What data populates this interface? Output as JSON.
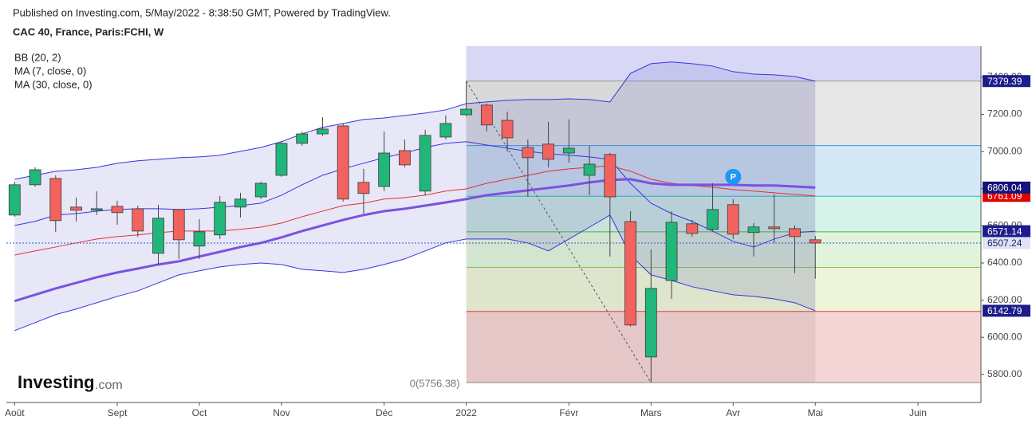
{
  "header": {
    "published": "Published on Investing.com, 5/May/2022 - 8:38:50 GMT, Powered by TradingView.",
    "symbol": "CAC 40, France, Paris:FCHI, W"
  },
  "chart_data": {
    "type": "candlestick",
    "x": [
      0,
      1,
      2,
      3,
      4,
      5,
      6,
      7,
      8,
      9,
      10,
      11,
      12,
      13,
      14,
      15,
      16,
      17,
      18,
      19,
      20,
      21,
      22,
      23,
      24,
      25,
      26,
      27,
      28,
      29,
      30,
      31,
      32,
      33,
      34,
      35,
      36,
      37,
      38,
      39
    ],
    "open": [
      6658,
      6821,
      6855,
      6701,
      6684,
      6705,
      6692,
      6452,
      6688,
      6491,
      6551,
      6701,
      6756,
      6872,
      7044,
      7095,
      7138,
      6834,
      6812,
      7005,
      6787,
      7078,
      7198,
      7250,
      7168,
      7022,
      7040,
      6992,
      6872,
      6984,
      6623,
      5894,
      6306,
      6611,
      6581,
      6714,
      6564,
      6594,
      6585,
      6525
    ],
    "high": [
      6838,
      6915,
      6872,
      6752,
      6786,
      6735,
      6709,
      6714,
      6692,
      6636,
      6761,
      6778,
      6838,
      7057,
      7108,
      7185,
      7151,
      6907,
      7108,
      7065,
      7117,
      7194,
      7379.39,
      7258,
      7215,
      7065,
      7160,
      7173,
      7031,
      6992,
      6679,
      6473,
      6679,
      6632,
      6829,
      6744,
      6615,
      6769,
      6602,
      6546
    ],
    "low": [
      6649,
      6812,
      6568,
      6623,
      6658,
      6606,
      6542,
      6392,
      6422,
      6422,
      6529,
      6645,
      6744,
      6864,
      7031,
      7083,
      6731,
      6666,
      6787,
      6915,
      6765,
      7065,
      7190,
      7108,
      7001,
      6756,
      6915,
      6941,
      6765,
      6435,
      6057,
      5756.38,
      6207,
      6542,
      6572,
      6529,
      6435,
      6508,
      6345,
      6315
    ],
    "close": [
      6821,
      6902,
      6628,
      6684,
      6692,
      6671,
      6572,
      6641,
      6525,
      6568,
      6727,
      6744,
      6829,
      7044,
      7095,
      7121,
      6744,
      6774,
      6992,
      6928,
      7087,
      7151,
      7228,
      7143,
      7074,
      6967,
      6958,
      7018,
      6932,
      6756,
      6066,
      6263,
      6619,
      6559,
      6688,
      6555,
      6594,
      6585,
      6542,
      6507.24
    ],
    "up_color": "#22b77a",
    "down_color": "#f2625f",
    "last_color": "#3a55d0",
    "bands": {
      "name": "BB (20, 2)",
      "color": "#3535e0",
      "fill": "rgba(70,70,190,0.13)",
      "upper": [
        6851,
        6872,
        6894,
        6902,
        6915,
        6937,
        6950,
        6958,
        6967,
        6971,
        6980,
        7001,
        7022,
        7053,
        7095,
        7130,
        7151,
        7173,
        7181,
        7194,
        7207,
        7224,
        7258,
        7267,
        7276,
        7280,
        7280,
        7284,
        7280,
        7267,
        7421,
        7473,
        7482,
        7473,
        7460,
        7430,
        7417,
        7413,
        7404,
        7379.39
      ],
      "middle": [
        6602,
        6624,
        6658,
        6666,
        6679,
        6688,
        6692,
        6692,
        6688,
        6692,
        6701,
        6709,
        6722,
        6765,
        6821,
        6872,
        6907,
        6937,
        6967,
        6992,
        7022,
        7044,
        7053,
        7035,
        7018,
        7001,
        6988,
        6980,
        6971,
        6958,
        6829,
        6722,
        6666,
        6624,
        6572,
        6516,
        6486,
        6529,
        6563,
        6571.14
      ],
      "lower": [
        6036,
        6079,
        6122,
        6152,
        6186,
        6220,
        6250,
        6293,
        6336,
        6358,
        6379,
        6392,
        6400,
        6392,
        6366,
        6358,
        6349,
        6366,
        6392,
        6422,
        6465,
        6508,
        6529,
        6529,
        6529,
        6508,
        6465,
        6529,
        6593,
        6658,
        6443,
        6336,
        6306,
        6272,
        6250,
        6229,
        6220,
        6207,
        6186,
        6142.79
      ]
    },
    "series": [
      {
        "name": "MA (7, close, 0)",
        "color": "#e53030",
        "width": 1,
        "values": [
          6443,
          6465,
          6486,
          6508,
          6529,
          6542,
          6551,
          6563,
          6572,
          6572,
          6572,
          6581,
          6593,
          6615,
          6649,
          6679,
          6709,
          6722,
          6744,
          6752,
          6765,
          6787,
          6799,
          6829,
          6851,
          6872,
          6894,
          6907,
          6915,
          6924,
          6894,
          6851,
          6829,
          6817,
          6808,
          6795,
          6787,
          6778,
          6769,
          6761.09
        ]
      },
      {
        "name": "MA (30, close, 0)",
        "color": "#7a52e0",
        "width": 3,
        "values": [
          6195,
          6229,
          6263,
          6293,
          6323,
          6349,
          6370,
          6392,
          6409,
          6435,
          6460,
          6486,
          6508,
          6538,
          6572,
          6602,
          6632,
          6658,
          6679,
          6692,
          6709,
          6726,
          6744,
          6765,
          6778,
          6791,
          6804,
          6817,
          6834,
          6847,
          6851,
          6829,
          6821,
          6821,
          6821,
          6821,
          6817,
          6817,
          6812,
          6806.04
        ]
      }
    ],
    "tag_colors": [
      "#1c1c8c",
      "#1c1c8c",
      "#1c1c8c",
      "#e00000",
      "#14147a"
    ],
    "fib": {
      "start": 22,
      "end": 31,
      "low": 5756.38,
      "high": 7379.39,
      "label": "0(5756.38)",
      "levels": [
        0,
        0.236,
        0.382,
        0.5,
        0.618,
        0.786,
        1
      ],
      "zone_colors": [
        "#f4d4d4",
        "#ecf4d9",
        "#e1f3dd",
        "#d6f3ea",
        "#d5e8f5",
        "#e7e7e7",
        "#d8d8f6"
      ],
      "line_colors": [
        "#888888",
        "#e53935",
        "#8bc34a",
        "#4caf50",
        "#26bfa5",
        "#3d9bd6",
        "#999999"
      ]
    },
    "annotation": {
      "text": "P",
      "x": 35,
      "y": 6864,
      "color": "#2196f3"
    },
    "xlim": [
      -0.4,
      47.07
    ],
    "xticks": [
      {
        "value": 0,
        "label": "Août"
      },
      {
        "value": 5,
        "label": "Sept"
      },
      {
        "value": 9,
        "label": "Oct"
      },
      {
        "value": 13,
        "label": "Nov"
      },
      {
        "value": 18,
        "label": "Déc"
      },
      {
        "value": 22,
        "label": "2022"
      },
      {
        "value": 27,
        "label": "Févr"
      },
      {
        "value": 31,
        "label": "Mars"
      },
      {
        "value": 35,
        "label": "Avr"
      },
      {
        "value": 39,
        "label": "Mai"
      },
      {
        "value": 44,
        "label": "Juin"
      }
    ],
    "ylim": [
      5649,
      7567
    ],
    "yticks": [
      {
        "value": 5800,
        "label": "5800.00"
      },
      {
        "value": 6000,
        "label": "6000.00"
      },
      {
        "value": 6200,
        "label": "6200.00"
      },
      {
        "value": 6400,
        "label": "6400.00"
      },
      {
        "value": 6600,
        "label": "6600.00"
      },
      {
        "value": 6800,
        "label": "6800.00"
      },
      {
        "value": 7000,
        "label": "7000.00"
      },
      {
        "value": 7200,
        "label": "7200.00"
      },
      {
        "value": 7400,
        "label": "7400.00"
      }
    ],
    "logo": "Investing",
    "logo_suffix": ".com"
  }
}
